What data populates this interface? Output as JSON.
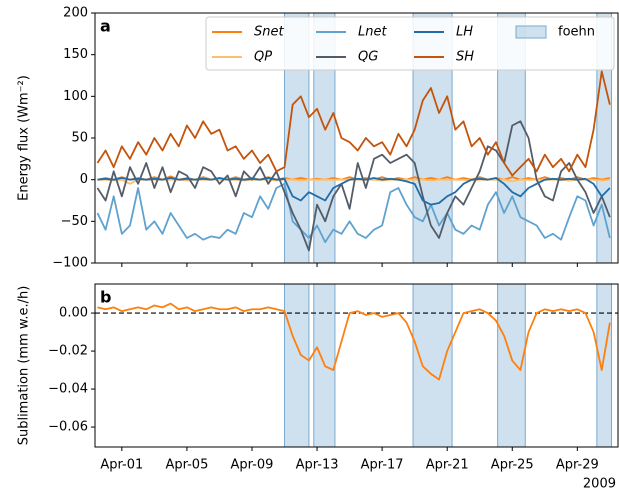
{
  "chart_data": [
    {
      "type": "line",
      "panel_label": "a",
      "ylabel": "Energy flux (Wm⁻²)",
      "x": [
        -0.5,
        0,
        0.5,
        1,
        1.5,
        2,
        2.5,
        3,
        3.5,
        4,
        4.5,
        5,
        5.5,
        6,
        6.5,
        7,
        7.5,
        8,
        8.5,
        9,
        9.5,
        10,
        10.5,
        11,
        11.5,
        12,
        12.5,
        13,
        13.5,
        14,
        14.5,
        15,
        15.5,
        16,
        16.5,
        17,
        17.5,
        18,
        18.5,
        19,
        19.5,
        20,
        20.5,
        21,
        21.5,
        22,
        22.5,
        23,
        23.5,
        24,
        24.5,
        25,
        25.5,
        26,
        26.5,
        27,
        27.5,
        28,
        28.5,
        29,
        29.5,
        30,
        30.5,
        31
      ],
      "xlim": [
        -0.65,
        31.5
      ],
      "xticks": [
        {
          "value": 1,
          "label": "Apr-01"
        },
        {
          "value": 5,
          "label": "Apr-05"
        },
        {
          "value": 9,
          "label": "Apr-09"
        },
        {
          "value": 13,
          "label": "Apr-13"
        },
        {
          "value": 17,
          "label": "Apr-17"
        },
        {
          "value": 21,
          "label": "Apr-21"
        },
        {
          "value": 25,
          "label": "Apr-25"
        },
        {
          "value": 29,
          "label": "Apr-29"
        }
      ],
      "ylim": [
        -100,
        200
      ],
      "yticks": [
        {
          "value": -100,
          "label": "−100"
        },
        {
          "value": -50,
          "label": "−50"
        },
        0,
        50,
        100,
        150,
        200
      ],
      "legend": "upper right",
      "spans": {
        "name": "foehn",
        "color": "#a8c8e0",
        "ranges": [
          [
            11,
            12.5
          ],
          [
            12.8,
            14.1
          ],
          [
            18.9,
            21.3
          ],
          [
            24.1,
            25.8
          ],
          [
            30.2,
            31.1
          ]
        ]
      },
      "series": [
        {
          "name": "Snet",
          "color": "#ff7f0e",
          "values": [
            0,
            2,
            0,
            3,
            0,
            2,
            0,
            3,
            0,
            4,
            0,
            2,
            0,
            3,
            0,
            2,
            0,
            3,
            0,
            2,
            0,
            3,
            0,
            2,
            0,
            2,
            0,
            1,
            0,
            2,
            0,
            3,
            0,
            2,
            0,
            3,
            0,
            2,
            0,
            3,
            0,
            2,
            0,
            3,
            0,
            2,
            0,
            3,
            0,
            2,
            0,
            3,
            0,
            2,
            0,
            3,
            0,
            2,
            0,
            3,
            0,
            2,
            0,
            2
          ]
        },
        {
          "name": "QP",
          "color": "#fdbf6f",
          "values": [
            0,
            0,
            -1,
            0,
            -5,
            0,
            0,
            0,
            0,
            0,
            0,
            -1,
            0,
            0,
            0,
            0,
            0,
            0,
            -1,
            0,
            0,
            0,
            -1,
            0,
            0,
            -1,
            0,
            0,
            0,
            0,
            0,
            0,
            0,
            0,
            0,
            -1,
            0,
            0,
            0,
            0,
            0,
            -1,
            0,
            0,
            0,
            0,
            -1,
            0,
            0,
            0,
            0,
            -2,
            0,
            0,
            0,
            0,
            0,
            0,
            -1,
            0,
            0,
            0,
            -1,
            0
          ]
        },
        {
          "name": "Lnet",
          "color": "#5fa2cf",
          "values": [
            -40,
            -60,
            -20,
            -65,
            -55,
            -10,
            -60,
            -50,
            -65,
            -40,
            -55,
            -70,
            -65,
            -72,
            -68,
            -70,
            -60,
            -65,
            -40,
            -45,
            -20,
            -35,
            -10,
            -5,
            -50,
            -60,
            -70,
            -55,
            -75,
            -60,
            -65,
            -50,
            -65,
            -70,
            -60,
            -55,
            -15,
            -10,
            -30,
            -45,
            -50,
            -30,
            -55,
            -40,
            -60,
            -65,
            -55,
            -60,
            -30,
            -15,
            -40,
            -20,
            -45,
            -50,
            -55,
            -70,
            -65,
            -72,
            -45,
            -20,
            -25,
            -55,
            -30,
            -70
          ]
        },
        {
          "name": "QG",
          "color": "#545c69",
          "values": [
            -10,
            -25,
            10,
            -20,
            15,
            -5,
            20,
            -10,
            15,
            -15,
            10,
            5,
            -10,
            15,
            10,
            -5,
            5,
            -20,
            10,
            0,
            15,
            -5,
            10,
            -15,
            -40,
            -60,
            -85,
            -30,
            -50,
            -20,
            -5,
            -35,
            20,
            -10,
            25,
            30,
            20,
            25,
            30,
            20,
            -20,
            -55,
            -70,
            -40,
            -20,
            -30,
            -10,
            10,
            40,
            35,
            20,
            65,
            70,
            50,
            0,
            -20,
            -25,
            10,
            20,
            0,
            -15,
            -40,
            -20,
            -45
          ]
        },
        {
          "name": "LH",
          "color": "#1f6eab",
          "values": [
            0,
            1,
            0,
            2,
            0,
            1,
            0,
            1,
            0,
            2,
            0,
            1,
            0,
            1,
            0,
            2,
            0,
            1,
            0,
            1,
            0,
            2,
            0,
            1,
            -20,
            -25,
            -15,
            -20,
            -25,
            -10,
            -5,
            0,
            1,
            0,
            2,
            0,
            1,
            0,
            -2,
            -5,
            -25,
            -30,
            -28,
            -20,
            -15,
            -5,
            0,
            1,
            0,
            2,
            -5,
            -15,
            -20,
            -10,
            -5,
            0,
            1,
            0,
            1,
            0,
            1,
            -5,
            -20,
            -10
          ]
        },
        {
          "name": "SH",
          "color": "#c4540c",
          "values": [
            20,
            35,
            15,
            40,
            25,
            45,
            30,
            50,
            35,
            55,
            40,
            65,
            50,
            70,
            55,
            60,
            35,
            40,
            25,
            35,
            20,
            30,
            10,
            15,
            90,
            100,
            75,
            85,
            60,
            80,
            50,
            45,
            35,
            50,
            40,
            45,
            30,
            55,
            40,
            60,
            95,
            110,
            80,
            100,
            60,
            70,
            40,
            50,
            30,
            45,
            20,
            5,
            15,
            25,
            10,
            30,
            15,
            25,
            10,
            30,
            15,
            60,
            130,
            90
          ]
        }
      ]
    },
    {
      "type": "line",
      "panel_label": "b",
      "ylabel": "Sublimation (mm w.e./h)",
      "year_label": "2009",
      "x": [
        -0.5,
        0,
        0.5,
        1,
        1.5,
        2,
        2.5,
        3,
        3.5,
        4,
        4.5,
        5,
        5.5,
        6,
        6.5,
        7,
        7.5,
        8,
        8.5,
        9,
        9.5,
        10,
        10.5,
        11,
        11.5,
        12,
        12.5,
        13,
        13.5,
        14,
        14.5,
        15,
        15.5,
        16,
        16.5,
        17,
        17.5,
        18,
        18.5,
        19,
        19.5,
        20,
        20.5,
        21,
        21.5,
        22,
        22.5,
        23,
        23.5,
        24,
        24.5,
        25,
        25.5,
        26,
        26.5,
        27,
        27.5,
        28,
        28.5,
        29,
        29.5,
        30,
        30.5,
        31
      ],
      "xlim": [
        -0.65,
        31.5
      ],
      "xticks": [
        {
          "value": 1,
          "label": "Apr-01"
        },
        {
          "value": 5,
          "label": "Apr-05"
        },
        {
          "value": 9,
          "label": "Apr-09"
        },
        {
          "value": 13,
          "label": "Apr-13"
        },
        {
          "value": 17,
          "label": "Apr-17"
        },
        {
          "value": 21,
          "label": "Apr-21"
        },
        {
          "value": 25,
          "label": "Apr-25"
        },
        {
          "value": 29,
          "label": "Apr-29"
        }
      ],
      "ylim": [
        -0.0705,
        0.0153
      ],
      "yticks": [
        {
          "value": -0.06,
          "label": "−0.06"
        },
        {
          "value": -0.04,
          "label": "−0.04"
        },
        {
          "value": -0.02,
          "label": "−0.02"
        },
        {
          "value": 0,
          "label": "0.00"
        }
      ],
      "zero_line": true,
      "spans": {
        "color": "#a8c8e0",
        "ranges": [
          [
            11,
            12.5
          ],
          [
            12.8,
            14.1
          ],
          [
            18.9,
            21.3
          ],
          [
            24.1,
            25.8
          ],
          [
            30.2,
            31.1
          ]
        ]
      },
      "series": [
        {
          "color": "#ff7f0e",
          "values": [
            0.003,
            0.002,
            0.003,
            0.001,
            0.002,
            0.003,
            0.002,
            0.004,
            0.003,
            0.005,
            0.002,
            0.003,
            0.001,
            0.002,
            0.003,
            0.002,
            0.002,
            0.003,
            0.001,
            0.002,
            0.002,
            0.003,
            0.002,
            0.001,
            -0.012,
            -0.022,
            -0.025,
            -0.018,
            -0.028,
            -0.03,
            -0.015,
            0.0,
            0.001,
            -0.001,
            0.0,
            -0.002,
            -0.001,
            0.0,
            -0.005,
            -0.015,
            -0.028,
            -0.032,
            -0.035,
            -0.02,
            -0.01,
            0.0,
            0.001,
            0.002,
            0.0,
            -0.004,
            -0.012,
            -0.025,
            -0.03,
            -0.01,
            0.0,
            0.002,
            0.001,
            0.002,
            0.001,
            0.002,
            0.0,
            -0.01,
            -0.03,
            -0.005
          ]
        }
      ]
    }
  ]
}
